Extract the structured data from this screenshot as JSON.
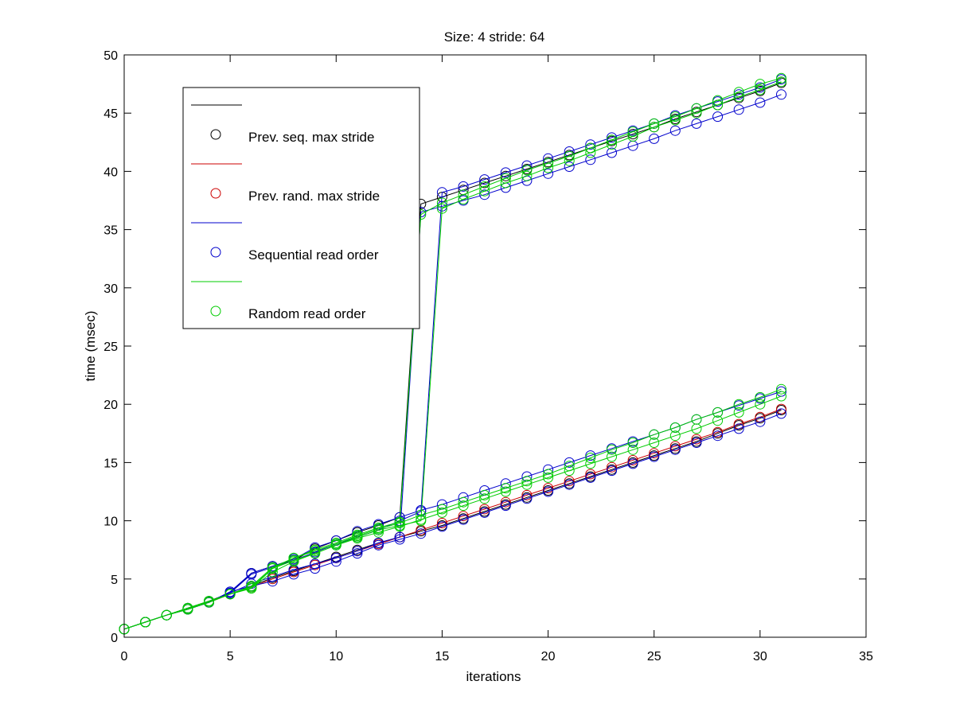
{
  "chart_data": {
    "type": "line",
    "title": "Size: 4 stride: 64",
    "xlabel": "iterations",
    "ylabel": "time (msec)",
    "xlim": [
      0,
      35
    ],
    "ylim": [
      0,
      50
    ],
    "xticks": [
      0,
      5,
      10,
      15,
      20,
      25,
      30,
      35
    ],
    "yticks": [
      0,
      5,
      10,
      15,
      20,
      25,
      30,
      35,
      40,
      45,
      50
    ],
    "grid": false,
    "legend": {
      "placement": "top-left",
      "entries": [
        {
          "label": "Prev. seq. max stride",
          "color": "#000000"
        },
        {
          "label": "Prev. rand. max stride",
          "color": "#cc0000"
        },
        {
          "label": "Sequential read order",
          "color": "#0000cc"
        },
        {
          "label": "Random read order",
          "color": "#00cc00"
        }
      ]
    },
    "marker": "circle",
    "series": [
      {
        "color": "#000000",
        "x": [
          0,
          1,
          2,
          3,
          4,
          5,
          6,
          7,
          8,
          9,
          10,
          11,
          12,
          13,
          14,
          15,
          16,
          17,
          18,
          19,
          20,
          21,
          22,
          23,
          24,
          25,
          26,
          27,
          28,
          29,
          30,
          31
        ],
        "y": [
          0.7,
          1.3,
          1.9,
          2.4,
          3.0,
          3.7,
          4.4,
          5.1,
          5.7,
          6.3,
          6.9,
          7.5,
          8.1,
          8.6,
          9.1,
          9.6,
          10.2,
          10.8,
          11.4,
          12.0,
          12.6,
          13.2,
          13.8,
          14.4,
          15.0,
          15.6,
          16.2,
          16.8,
          17.5,
          18.2,
          18.8,
          19.5
        ]
      },
      {
        "color": "#000000",
        "x": [
          0,
          1,
          2,
          3,
          4,
          5,
          6,
          7,
          8,
          9,
          10,
          11,
          12,
          13,
          14,
          15,
          16,
          17,
          18,
          19,
          20,
          21,
          22,
          23,
          24,
          25,
          26,
          27,
          28,
          29,
          30,
          31
        ],
        "y": [
          0.7,
          1.3,
          1.9,
          2.5,
          3.1,
          3.8,
          5.5,
          6.1,
          6.6,
          7.6,
          8.3,
          9.0,
          9.6,
          10.3,
          37.2,
          37.8,
          38.4,
          39.0,
          39.6,
          40.2,
          40.8,
          41.4,
          42.0,
          42.6,
          43.2,
          43.8,
          44.5,
          45.1,
          45.7,
          46.3,
          46.9,
          47.6
        ]
      },
      {
        "color": "#cc0000",
        "x": [
          0,
          1,
          2,
          3,
          4,
          5,
          6,
          7,
          8,
          9,
          10,
          11,
          12,
          13,
          14,
          15,
          16,
          17,
          18,
          19,
          20,
          21,
          22,
          23,
          24,
          25,
          26,
          27,
          28,
          29,
          30,
          31
        ],
        "y": [
          0.7,
          1.3,
          1.9,
          2.4,
          3.0,
          3.7,
          4.3,
          5.0,
          5.6,
          6.2,
          6.8,
          7.4,
          8.0,
          8.6,
          9.2,
          9.8,
          10.4,
          11.0,
          11.6,
          12.2,
          12.8,
          13.4,
          14.0,
          14.6,
          15.2,
          15.8,
          16.4,
          17.0,
          17.6,
          18.3,
          18.9,
          19.6
        ]
      },
      {
        "color": "#0000cc",
        "x": [
          0,
          1,
          2,
          3,
          4,
          5,
          6,
          7,
          8,
          9,
          10,
          11,
          12,
          13,
          14,
          15,
          16,
          17,
          18,
          19,
          20,
          21,
          22,
          23,
          24,
          25,
          26,
          27,
          28,
          29,
          30,
          31
        ],
        "y": [
          0.7,
          1.3,
          1.9,
          2.4,
          3.0,
          3.9,
          4.4,
          4.8,
          5.4,
          5.9,
          6.5,
          7.2,
          7.9,
          8.4,
          8.9,
          9.5,
          10.1,
          10.7,
          11.3,
          11.9,
          12.5,
          13.1,
          13.7,
          14.3,
          14.9,
          15.5,
          16.1,
          16.7,
          17.3,
          17.9,
          18.5,
          19.2
        ]
      },
      {
        "color": "#0000cc",
        "x": [
          0,
          1,
          2,
          3,
          4,
          5,
          6,
          7,
          8,
          9,
          10,
          11,
          12,
          13,
          14,
          15,
          16,
          17,
          18,
          19,
          20,
          21,
          22,
          23,
          24,
          25,
          26,
          27,
          28,
          29,
          30,
          31
        ],
        "y": [
          0.7,
          1.3,
          1.9,
          2.4,
          3.0,
          3.9,
          5.5,
          6.1,
          6.7,
          7.7,
          8.3,
          9.1,
          9.7,
          10.3,
          10.9,
          11.4,
          12.0,
          12.6,
          13.2,
          13.8,
          14.4,
          15.0,
          15.6,
          16.2,
          16.8,
          17.4,
          18.0,
          18.7,
          19.3,
          19.9,
          20.5,
          21.1
        ]
      },
      {
        "color": "#0000cc",
        "x": [
          0,
          1,
          2,
          3,
          4,
          5,
          6,
          7,
          8,
          9,
          10,
          11,
          12,
          13,
          14,
          15,
          16,
          17,
          18,
          19,
          20,
          21,
          22,
          23,
          24,
          25,
          26,
          27,
          28,
          29,
          30,
          31
        ],
        "y": [
          0.7,
          1.3,
          1.9,
          2.4,
          3.0,
          3.8,
          4.6,
          5.2,
          5.8,
          6.3,
          6.8,
          7.4,
          8.1,
          8.6,
          36.5,
          37.0,
          37.5,
          38.0,
          38.6,
          39.2,
          39.8,
          40.4,
          41.0,
          41.6,
          42.2,
          42.8,
          43.5,
          44.1,
          44.7,
          45.3,
          45.9,
          46.6
        ]
      },
      {
        "color": "#0000cc",
        "x": [
          0,
          1,
          2,
          3,
          4,
          5,
          6,
          7,
          8,
          9,
          10,
          11,
          12,
          13,
          14,
          15,
          16,
          17,
          18,
          19,
          20,
          21,
          22,
          23,
          24,
          25,
          26,
          27,
          28,
          29,
          30,
          31
        ],
        "y": [
          0.7,
          1.3,
          1.9,
          2.5,
          3.0,
          3.8,
          5.4,
          6.0,
          6.6,
          7.3,
          8.0,
          8.6,
          9.2,
          10.0,
          10.8,
          38.2,
          38.7,
          39.3,
          39.9,
          40.5,
          41.1,
          41.7,
          42.3,
          42.9,
          43.5,
          44.1,
          44.8,
          45.4,
          46.0,
          46.6,
          47.2,
          47.9
        ]
      },
      {
        "color": "#00cc00",
        "x": [
          0,
          1,
          2,
          3,
          4,
          5,
          6,
          7,
          8,
          9,
          10,
          11,
          12,
          13,
          14,
          15,
          16,
          17,
          18,
          19,
          20,
          21,
          22,
          23,
          24,
          25,
          26,
          27,
          28,
          29,
          30,
          31
        ],
        "y": [
          0.7,
          1.3,
          1.9,
          2.4,
          3.1,
          3.7,
          4.2,
          5.6,
          6.5,
          7.2,
          7.9,
          8.5,
          9.0,
          9.5,
          10.1,
          10.7,
          11.3,
          11.9,
          12.5,
          13.1,
          13.7,
          14.3,
          14.9,
          15.5,
          16.1,
          16.7,
          17.3,
          17.9,
          18.6,
          19.3,
          20.0,
          20.7
        ]
      },
      {
        "color": "#00cc00",
        "x": [
          0,
          1,
          2,
          3,
          4,
          5,
          6,
          7,
          8,
          9,
          10,
          11,
          12,
          13,
          14,
          15,
          16,
          17,
          18,
          19,
          20,
          21,
          22,
          23,
          24,
          25,
          26,
          27,
          28,
          29,
          30,
          31
        ],
        "y": [
          0.7,
          1.3,
          1.9,
          2.5,
          3.1,
          3.7,
          4.3,
          5.9,
          6.8,
          7.4,
          8.0,
          8.7,
          9.3,
          9.8,
          10.5,
          11.0,
          11.6,
          12.2,
          12.8,
          13.4,
          14.0,
          14.7,
          15.4,
          16.1,
          16.7,
          17.4,
          18.0,
          18.7,
          19.3,
          20.0,
          20.6,
          21.3
        ]
      },
      {
        "color": "#00cc00",
        "x": [
          0,
          1,
          2,
          3,
          4,
          5,
          6,
          7,
          8,
          9,
          10,
          11,
          12,
          13,
          14,
          15,
          16,
          17,
          18,
          19,
          20,
          21,
          22,
          23,
          24,
          25,
          26,
          27,
          28,
          29,
          30,
          31
        ],
        "y": [
          0.7,
          1.3,
          1.9,
          2.4,
          3.0,
          3.7,
          4.2,
          5.9,
          6.6,
          7.2,
          7.9,
          8.6,
          9.2,
          9.6,
          10.0,
          36.8,
          37.6,
          38.3,
          39.0,
          39.6,
          40.3,
          40.9,
          41.6,
          42.3,
          43.0,
          43.8,
          44.4,
          45.0,
          45.7,
          46.4,
          47.0,
          47.7
        ]
      },
      {
        "color": "#00cc00",
        "x": [
          0,
          1,
          2,
          3,
          4,
          5,
          6,
          7,
          8,
          9,
          10,
          11,
          12,
          13,
          14,
          15,
          16,
          17,
          18,
          19,
          20,
          21,
          22,
          23,
          24,
          25,
          26,
          27,
          28,
          29,
          30,
          31
        ],
        "y": [
          0.7,
          1.3,
          1.9,
          2.5,
          3.1,
          3.7,
          4.4,
          6.0,
          6.8,
          7.5,
          8.1,
          8.8,
          9.4,
          9.9,
          36.3,
          37.3,
          38.0,
          38.7,
          39.4,
          40.1,
          40.7,
          41.3,
          42.0,
          42.7,
          43.4,
          44.1,
          44.7,
          45.4,
          46.1,
          46.8,
          47.5,
          48.0
        ]
      }
    ]
  }
}
